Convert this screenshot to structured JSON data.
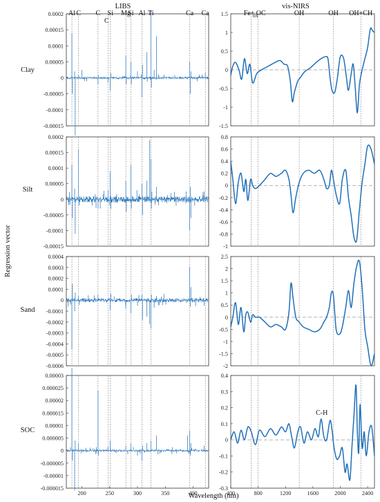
{
  "figure": {
    "col_titles": [
      "LIBS",
      "vis-NIRS"
    ],
    "row_labels": [
      "Clay",
      "Silt",
      "Sand",
      "SOC"
    ],
    "y_axis_label": "Regression vector",
    "x_axis_label": "Wavelength (nm)",
    "libs_peaks": [
      {
        "label": "Al",
        "x": 182
      },
      {
        "label": "C",
        "x": 194
      },
      {
        "label": "C",
        "x": 229
      },
      {
        "label": "C",
        "x": 247
      },
      {
        "label": "Si",
        "x": 251
      },
      {
        "label": "Mg",
        "x": 279
      },
      {
        "label": "Si",
        "x": 288
      },
      {
        "label": "Al",
        "x": 308
      },
      {
        "label": "Ti",
        "x": 324
      },
      {
        "label": "Ca",
        "x": 394
      },
      {
        "label": "Ca",
        "x": 422
      }
    ],
    "nir_peaks_top": [
      {
        "label": "Fe",
        "sub": "ox",
        "x": 700
      },
      {
        "label": "+ OC",
        "x": 800
      },
      {
        "label": "OH",
        "x": 1400
      },
      {
        "label": "OH",
        "x": 1900
      },
      {
        "label": "OH+CH",
        "x": 2300
      }
    ],
    "nir_annotation": {
      "label": "C-H",
      "x": 1730,
      "y": 0.155
    }
  },
  "chart_data": [
    {
      "type": "line",
      "panel": "Clay-LIBS",
      "x_range": [
        172,
        428
      ],
      "ylim": [
        -0.00015,
        0.0002
      ],
      "yticks": [
        -0.00015,
        -0.0001,
        -5e-05,
        0,
        5e-05,
        0.0001,
        0.00015,
        0.0002
      ],
      "ytick_labels": [
        "-0.00015",
        "-0.0001",
        "-0.00005",
        "0",
        "0.00005",
        "0.0001",
        "0.00015",
        "0.0002"
      ],
      "xticks": [],
      "xtick_labels": [],
      "spikes": [
        [
          182,
          0.00014
        ],
        [
          183,
          -5e-05
        ],
        [
          187,
          2e-05
        ],
        [
          188,
          -0.00018
        ],
        [
          194,
          1e-05
        ],
        [
          200,
          2.5e-05
        ],
        [
          205,
          -1e-05
        ],
        [
          229,
          -2e-05
        ],
        [
          247,
          -1.5e-05
        ],
        [
          251,
          -4e-05
        ],
        [
          252,
          1.5e-05
        ],
        [
          279,
          7e-05
        ],
        [
          280,
          -2e-05
        ],
        [
          288,
          5e-05
        ],
        [
          289,
          -2e-05
        ],
        [
          300,
          2e-05
        ],
        [
          308,
          -6e-05
        ],
        [
          309,
          4e-05
        ],
        [
          317,
          8e-05
        ],
        [
          324,
          0.00021
        ],
        [
          325,
          -3e-05
        ],
        [
          330,
          2.5e-05
        ],
        [
          334,
          0.00013
        ],
        [
          348,
          1e-05
        ],
        [
          394,
          5e-05
        ],
        [
          395,
          -5e-05
        ],
        [
          396,
          2e-05
        ],
        [
          422,
          1.5e-05
        ],
        [
          416,
          1e-05
        ]
      ],
      "noise": 4e-06
    },
    {
      "type": "line",
      "panel": "Silt-LIBS",
      "x_range": [
        172,
        428
      ],
      "ylim": [
        -0.00015,
        0.0002
      ],
      "yticks": [
        -0.00015,
        -0.0001,
        -5e-05,
        0,
        5e-05,
        0.0001,
        0.00015,
        0.0002
      ],
      "ytick_labels": [
        "-0.00015",
        "-0.0001",
        "-0.00005",
        "0",
        "0.00005",
        "0.0001",
        "0.00015",
        "0.0002"
      ],
      "xticks": [],
      "xtick_labels": [],
      "spikes": [
        [
          182,
          0.00011
        ],
        [
          183,
          -6e-05
        ],
        [
          187,
          3.5e-05
        ],
        [
          188,
          -0.00011
        ],
        [
          194,
          0.00016
        ],
        [
          195,
          -2e-05
        ],
        [
          229,
          -3e-05
        ],
        [
          247,
          3e-05
        ],
        [
          251,
          9e-05
        ],
        [
          252,
          -3e-05
        ],
        [
          279,
          6e-05
        ],
        [
          280,
          -4e-05
        ],
        [
          288,
          0.00011
        ],
        [
          289,
          -3e-05
        ],
        [
          308,
          5e-05
        ],
        [
          309,
          -5e-05
        ],
        [
          317,
          6e-05
        ],
        [
          322,
          0.00019
        ],
        [
          324,
          0.00013
        ],
        [
          325,
          -3e-05
        ],
        [
          334,
          4e-05
        ],
        [
          360,
          2e-05
        ],
        [
          394,
          -0.0001
        ],
        [
          395,
          4e-05
        ],
        [
          396,
          -6e-05
        ],
        [
          420,
          2.5e-05
        ]
      ],
      "noise": 1e-05
    },
    {
      "type": "line",
      "panel": "Sand-LIBS",
      "x_range": [
        172,
        428
      ],
      "ylim": [
        -0.0006,
        0.0004
      ],
      "yticks": [
        -0.0006,
        -0.0005,
        -0.0004,
        -0.0003,
        -0.0002,
        -0.0001,
        0,
        0.0001,
        0.0002,
        0.0003,
        0.0004
      ],
      "ytick_labels": [
        "-0.0006",
        "-0.0005",
        "-0.0004",
        "-0.0003",
        "-0.0002",
        "-0.0001",
        "0",
        "0.0001",
        "0.0002",
        "0.0003",
        "0.0004"
      ],
      "xticks": [],
      "xtick_labels": [],
      "spikes": [
        [
          182,
          -0.00045
        ],
        [
          183,
          0.00015
        ],
        [
          187,
          -0.0001
        ],
        [
          188,
          7e-05
        ],
        [
          194,
          4e-05
        ],
        [
          229,
          5e-05
        ],
        [
          251,
          -9e-05
        ],
        [
          252,
          6e-05
        ],
        [
          279,
          -8e-05
        ],
        [
          288,
          -0.00012
        ],
        [
          289,
          5e-05
        ],
        [
          308,
          5e-05
        ],
        [
          309,
          -0.00018
        ],
        [
          317,
          -0.00015
        ],
        [
          322,
          -0.00022
        ],
        [
          324,
          -0.00026
        ],
        [
          325,
          5e-05
        ],
        [
          330,
          -7e-05
        ],
        [
          334,
          4e-05
        ],
        [
          394,
          0.0003
        ],
        [
          395,
          -6e-05
        ],
        [
          396,
          0.00012
        ],
        [
          420,
          -5e-05
        ]
      ],
      "noise": 2e-05
    },
    {
      "type": "line",
      "panel": "SOC-LIBS",
      "x_range": [
        172,
        428
      ],
      "ylim": [
        -1.5e-05,
        3e-05
      ],
      "yticks": [
        -1.5e-05,
        -1e-05,
        -5e-06,
        0,
        5e-06,
        1e-05,
        1.5e-05,
        2e-05,
        2.5e-05,
        3e-05
      ],
      "ytick_labels": [
        "-0.000015",
        "-0.00001",
        "-0.000005",
        "0",
        "0.000005",
        "0.00001",
        "0.000015",
        "0.00002",
        "0.000025",
        "0.00003"
      ],
      "xticks": [
        200,
        250,
        300,
        350,
        400
      ],
      "xtick_labels": [
        "200",
        "250",
        "300",
        "350",
        "400"
      ],
      "spikes": [
        [
          182,
          3.3e-05
        ],
        [
          183,
          -4e-06
        ],
        [
          187,
          -1.6e-05
        ],
        [
          188,
          4e-06
        ],
        [
          194,
          3e-06
        ],
        [
          229,
          2.4e-05
        ],
        [
          230,
          -2e-06
        ],
        [
          247,
          1.5e-06
        ],
        [
          251,
          4e-06
        ],
        [
          279,
          2e-06
        ],
        [
          288,
          3e-06
        ],
        [
          300,
          -2e-06
        ],
        [
          308,
          -4e-06
        ],
        [
          309,
          2e-06
        ],
        [
          317,
          3e-06
        ],
        [
          324,
          4e-06
        ],
        [
          334,
          6e-06
        ],
        [
          390,
          6e-06
        ],
        [
          394,
          8e-06
        ],
        [
          395,
          -2e-06
        ],
        [
          396,
          3e-06
        ],
        [
          420,
          2e-06
        ]
      ],
      "noise": 5e-07
    },
    {
      "type": "line",
      "panel": "Clay-visNIRS",
      "x_range": [
        400,
        2500
      ],
      "ylim": [
        -1.5,
        1.5
      ],
      "yticks": [
        -1.5,
        -1,
        -0.5,
        0,
        0.5,
        1,
        1.5
      ],
      "ytick_labels": [
        "-1.5",
        "-1",
        "-0.5",
        "0",
        "0.5",
        "1",
        "1.5"
      ],
      "xticks": [],
      "xtick_labels": [],
      "x": [
        400,
        430,
        470,
        520,
        560,
        600,
        640,
        680,
        720,
        780,
        850,
        950,
        1050,
        1120,
        1180,
        1230,
        1270,
        1300,
        1330,
        1380,
        1420,
        1480,
        1560,
        1650,
        1720,
        1780,
        1820,
        1850,
        1880,
        1920,
        1960,
        2000,
        2050,
        2090,
        2120,
        2160,
        2190,
        2220,
        2250,
        2280,
        2320,
        2360,
        2400,
        2440,
        2470,
        2500
      ],
      "y": [
        -0.15,
        0.1,
        0.2,
        0.0,
        -0.25,
        0.3,
        -0.1,
        0.15,
        -0.35,
        -0.1,
        0.0,
        0.1,
        0.2,
        0.25,
        0.15,
        0.1,
        -0.3,
        -0.85,
        -0.6,
        -0.3,
        -0.2,
        -0.05,
        0.05,
        0.2,
        0.3,
        0.35,
        0.3,
        -0.2,
        -0.55,
        -0.6,
        -0.2,
        0.35,
        0.3,
        -0.2,
        -0.55,
        -0.1,
        0.15,
        -0.5,
        -1.15,
        -0.4,
        0.0,
        0.3,
        0.6,
        1.1,
        1.05,
        1.0
      ]
    },
    {
      "type": "line",
      "panel": "Silt-visNIRS",
      "x_range": [
        400,
        2500
      ],
      "ylim": [
        -1.0,
        0.8
      ],
      "yticks": [
        -1,
        -0.8,
        -0.6,
        -0.4,
        -0.2,
        0,
        0.2,
        0.4,
        0.6,
        0.8
      ],
      "ytick_labels": [
        "-1",
        "-0.8",
        "-0.6",
        "-0.4",
        "-0.2",
        "0",
        "0.2",
        "0.4",
        "0.6",
        "0.8"
      ],
      "xticks": [],
      "xtick_labels": [],
      "x": [
        400,
        430,
        470,
        510,
        550,
        590,
        620,
        650,
        690,
        720,
        760,
        820,
        900,
        980,
        1060,
        1140,
        1200,
        1250,
        1280,
        1310,
        1350,
        1400,
        1460,
        1540,
        1620,
        1700,
        1760,
        1800,
        1840,
        1870,
        1900,
        1940,
        1990,
        2030,
        2080,
        2120,
        2160,
        2200,
        2240,
        2280,
        2320,
        2360,
        2400,
        2450,
        2500
      ],
      "y": [
        0.4,
        0.1,
        -0.3,
        0.05,
        0.2,
        -0.1,
        0.1,
        -0.25,
        0.1,
        0.0,
        -0.05,
        0.0,
        0.1,
        0.2,
        0.15,
        0.2,
        0.25,
        0.1,
        -0.15,
        -0.45,
        -0.2,
        0.05,
        0.2,
        0.25,
        0.2,
        0.25,
        0.1,
        -0.05,
        0.0,
        0.25,
        0.1,
        -0.15,
        -0.3,
        0.1,
        0.25,
        -0.2,
        -0.5,
        -0.85,
        -0.9,
        -0.4,
        0.05,
        0.35,
        0.65,
        0.6,
        0.35
      ]
    },
    {
      "type": "line",
      "panel": "Sand-visNIRS",
      "x_range": [
        400,
        2500
      ],
      "ylim": [
        -2.0,
        2.5
      ],
      "yticks": [
        -2,
        -1.5,
        -1,
        -0.5,
        0,
        0.5,
        1,
        1.5,
        2,
        2.5
      ],
      "ytick_labels": [
        "-2",
        "-1.5",
        "-1",
        "-0.5",
        "0",
        "0.5",
        "1",
        "1.5",
        "2",
        "2.5"
      ],
      "xticks": [],
      "xtick_labels": [],
      "x": [
        400,
        430,
        470,
        510,
        550,
        590,
        620,
        650,
        690,
        720,
        760,
        820,
        900,
        980,
        1060,
        1140,
        1200,
        1250,
        1280,
        1310,
        1350,
        1400,
        1460,
        1540,
        1620,
        1700,
        1760,
        1800,
        1840,
        1870,
        1900,
        1940,
        1990,
        2030,
        2080,
        2120,
        2160,
        2200,
        2240,
        2280,
        2320,
        2360,
        2400,
        2450,
        2500
      ],
      "y": [
        -0.4,
        0.0,
        0.6,
        -0.3,
        0.4,
        -0.6,
        0.1,
        0.2,
        -0.2,
        0.1,
        0.0,
        0.0,
        -0.2,
        -0.4,
        -0.3,
        -0.4,
        -0.5,
        0.2,
        1.4,
        0.8,
        0.0,
        -0.2,
        -0.4,
        -0.5,
        -0.6,
        -0.5,
        -0.2,
        0.0,
        0.4,
        1.0,
        0.9,
        -0.5,
        -0.7,
        -0.4,
        0.4,
        1.1,
        0.4,
        1.4,
        2.1,
        2.3,
        1.2,
        -0.5,
        -1.2,
        -2.0,
        -1.5
      ]
    },
    {
      "type": "line",
      "panel": "SOC-visNIRS",
      "x_range": [
        400,
        2500
      ],
      "ylim": [
        -0.3,
        0.4
      ],
      "yticks": [
        -0.3,
        -0.2,
        -0.1,
        0,
        0.1,
        0.2,
        0.3,
        0.4
      ],
      "ytick_labels": [
        "-0.3",
        "-0.2",
        "-0.1",
        "0",
        "0.1",
        "0.2",
        "0.3",
        "0.4"
      ],
      "xticks": [
        400,
        800,
        1200,
        1600,
        2000,
        2400
      ],
      "xtick_labels": [
        "400",
        "800",
        "1200",
        "1600",
        "2000",
        "2400"
      ],
      "x": [
        400,
        450,
        500,
        550,
        600,
        650,
        700,
        760,
        820,
        900,
        980,
        1060,
        1140,
        1200,
        1250,
        1290,
        1330,
        1380,
        1420,
        1470,
        1520,
        1580,
        1630,
        1680,
        1720,
        1760,
        1800,
        1850,
        1880,
        1910,
        1950,
        1990,
        2030,
        2070,
        2100,
        2140,
        2170,
        2200,
        2230,
        2250,
        2270,
        2290,
        2320,
        2350,
        2380,
        2420,
        2460,
        2500
      ],
      "y": [
        0.0,
        0.05,
        -0.02,
        0.06,
        0.0,
        0.08,
        0.05,
        -0.03,
        0.06,
        0.02,
        0.07,
        0.03,
        0.08,
        0.05,
        0.1,
        0.02,
        -0.05,
        0.05,
        0.08,
        -0.02,
        0.05,
        0.0,
        0.07,
        0.02,
        0.13,
        0.02,
        0.0,
        0.12,
        0.06,
        -0.05,
        -0.12,
        -0.1,
        -0.05,
        -0.2,
        -0.15,
        -0.25,
        -0.05,
        0.15,
        0.34,
        0.05,
        -0.08,
        0.22,
        -0.05,
        0.05,
        -0.1,
        0.05,
        0.08,
        -0.1
      ]
    }
  ]
}
